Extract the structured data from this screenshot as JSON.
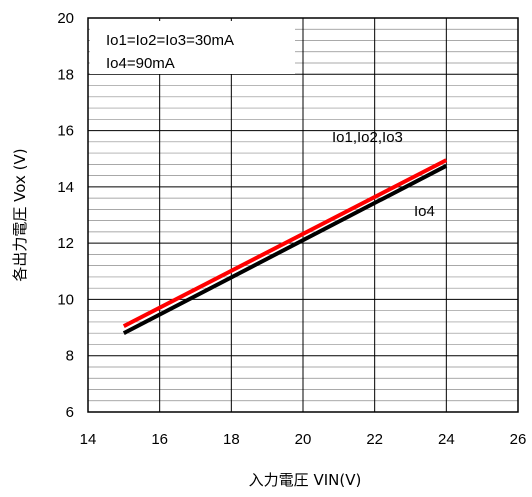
{
  "chart_data": {
    "type": "line",
    "xlabel": "入力電圧 VIN(V)",
    "ylabel": "各出力電圧 Vox (V)",
    "xlim": [
      14,
      26
    ],
    "ylim": [
      6,
      20
    ],
    "x_ticks": [
      14,
      16,
      18,
      20,
      22,
      24,
      26
    ],
    "y_ticks": [
      6,
      8,
      10,
      12,
      14,
      16,
      18,
      20
    ],
    "minor_y_step": 0.4,
    "grid": true,
    "legend_box": {
      "position": "top-left",
      "lines": [
        "Io1=Io2=Io3=30mA",
        "Io4=90mA"
      ]
    },
    "series": [
      {
        "name": "Io1,Io2,Io3",
        "color": "#ff0000",
        "x": [
          15,
          24
        ],
        "y": [
          9.05,
          14.95
        ]
      },
      {
        "name": "Io4",
        "color": "#000000",
        "x": [
          15,
          24
        ],
        "y": [
          8.8,
          14.75
        ]
      }
    ]
  }
}
